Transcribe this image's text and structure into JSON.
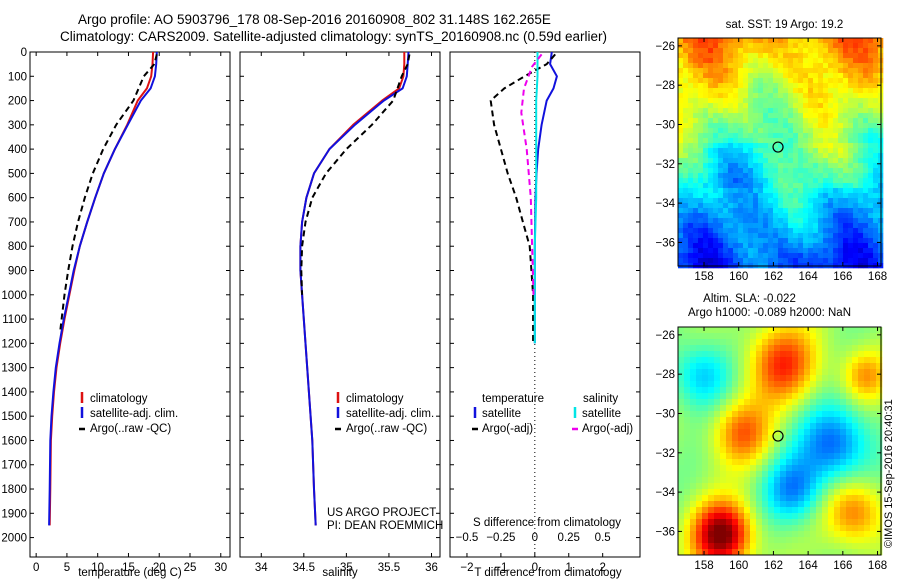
{
  "header": {
    "line1": "Argo profile: AO 5903796_178 08-Sep-2016 20160908_802 31.148S 162.265E",
    "line2": "Climatology: CARS2009. Satellite-adjusted climatology: synTS_20160908.nc (0.59d earlier)"
  },
  "colors": {
    "climatology": "#dd1111",
    "satellite": "#1111dd",
    "argo": "#000000",
    "sal_satellite": "#00e5e5",
    "sal_argo": "#ee00ee"
  },
  "chart_data": [
    {
      "type": "line",
      "name": "temperature-panel",
      "xlabel": "temperature (deg C)",
      "ylabel": "",
      "xlim": [
        -1,
        31.5
      ],
      "ylim": [
        2080,
        0
      ],
      "xticks": [
        0,
        5,
        10,
        15,
        20,
        25,
        30
      ],
      "yticks": [
        0,
        100,
        200,
        300,
        400,
        500,
        600,
        700,
        800,
        900,
        1000,
        1100,
        1200,
        1300,
        1400,
        1500,
        1600,
        1700,
        1800,
        1900,
        2000
      ],
      "legend": [
        "climatology",
        "satellite-adj. clim.",
        "Argo(..raw -QC)"
      ],
      "series": [
        {
          "name": "climatology",
          "style": "solid",
          "color_key": "climatology",
          "x": [
            19.0,
            18.9,
            18.7,
            18.0,
            16.5,
            14.8,
            12.8,
            11.0,
            9.6,
            8.3,
            7.1,
            6.2,
            5.4,
            4.6,
            3.9,
            3.3,
            2.9,
            2.6,
            2.4,
            2.3,
            2.2
          ],
          "y": [
            0,
            50,
            100,
            150,
            200,
            300,
            400,
            500,
            600,
            700,
            800,
            900,
            1000,
            1100,
            1200,
            1300,
            1400,
            1500,
            1600,
            1800,
            1950
          ]
        },
        {
          "name": "satellite-adj. clim.",
          "style": "solid",
          "color_key": "satellite",
          "x": [
            19.6,
            19.5,
            19.3,
            18.6,
            17.0,
            14.9,
            12.8,
            11.0,
            9.6,
            8.3,
            7.1,
            6.1,
            5.3,
            4.5,
            3.8,
            3.2,
            2.8,
            2.5,
            2.3,
            2.2,
            2.1
          ],
          "y": [
            0,
            50,
            100,
            150,
            200,
            300,
            400,
            500,
            600,
            700,
            800,
            900,
            1000,
            1100,
            1200,
            1300,
            1400,
            1500,
            1600,
            1800,
            1950
          ]
        },
        {
          "name": "Argo(..raw -QC)",
          "style": "dashed",
          "color_key": "argo",
          "x": [
            19.6,
            19.2,
            17.5,
            15.8,
            13.0,
            10.9,
            9.2,
            7.9,
            6.8,
            5.9,
            5.2,
            4.6,
            3.9
          ],
          "y": [
            10,
            50,
            100,
            200,
            300,
            400,
            500,
            600,
            700,
            800,
            900,
            1000,
            1150
          ]
        }
      ]
    },
    {
      "type": "line",
      "name": "salinity-panel",
      "xlabel": "salinity",
      "xlim": [
        33.75,
        36.1
      ],
      "ylim": [
        2080,
        0
      ],
      "xticks": [
        34,
        34.5,
        35,
        35.5,
        36
      ],
      "yticks": [
        0,
        100,
        200,
        300,
        400,
        500,
        600,
        700,
        800,
        900,
        1000,
        1100,
        1200,
        1300,
        1400,
        1500,
        1600,
        1700,
        1800,
        1900,
        2000
      ],
      "legend": [
        "climatology",
        "satellite-adj. clim.",
        "Argo(..raw -QC)"
      ],
      "series": [
        {
          "name": "climatology",
          "style": "solid",
          "color_key": "climatology",
          "x": [
            35.68,
            35.68,
            35.67,
            35.62,
            35.42,
            35.08,
            34.8,
            34.62,
            34.53,
            34.48,
            34.46,
            34.46,
            34.48,
            34.5,
            34.52,
            34.54,
            34.56,
            34.58,
            34.6,
            34.62,
            34.64
          ],
          "y": [
            0,
            50,
            100,
            150,
            200,
            300,
            400,
            500,
            600,
            700,
            800,
            900,
            1000,
            1100,
            1200,
            1300,
            1400,
            1500,
            1600,
            1800,
            1950
          ]
        },
        {
          "name": "satellite-adj. clim.",
          "style": "solid",
          "color_key": "satellite",
          "x": [
            35.73,
            35.72,
            35.71,
            35.66,
            35.44,
            35.1,
            34.8,
            34.62,
            34.53,
            34.48,
            34.46,
            34.46,
            34.48,
            34.5,
            34.52,
            34.54,
            34.56,
            34.58,
            34.6,
            34.62,
            34.64
          ],
          "y": [
            0,
            50,
            100,
            150,
            200,
            300,
            400,
            500,
            600,
            700,
            800,
            900,
            1000,
            1100,
            1200,
            1300,
            1400,
            1500,
            1600,
            1800,
            1950
          ]
        },
        {
          "name": "Argo(..raw -QC)",
          "style": "dashed",
          "color_key": "argo",
          "x": [
            35.74,
            35.72,
            35.65,
            35.55,
            35.3,
            35.0,
            34.76,
            34.6,
            34.52,
            34.48,
            34.47,
            34.48
          ],
          "y": [
            10,
            50,
            100,
            200,
            300,
            400,
            500,
            600,
            700,
            800,
            900,
            1000
          ]
        }
      ],
      "annotations": [
        "US ARGO PROJECT",
        "PI: DEAN ROEMMICH"
      ]
    },
    {
      "type": "line",
      "name": "difference-panel",
      "xlabel": "T difference from climatology",
      "xlabel2": "S difference from climatology",
      "xlim": [
        -2.5,
        3.1
      ],
      "ylim": [
        2080,
        0
      ],
      "xticks": [
        -2,
        -1,
        0,
        1,
        2
      ],
      "xticks2": [
        -0.5,
        -0.25,
        0,
        0.25,
        0.5
      ],
      "x2scale": 4,
      "legend_title_left": "temperature",
      "legend_title_right": "salinity",
      "legend_left": [
        "satellite",
        "Argo(-adj)"
      ],
      "legend_right": [
        "satellite",
        "Argo(-adj)"
      ],
      "series": [
        {
          "name": "T satellite",
          "style": "solid",
          "color_key": "satellite",
          "x": [
            0.5,
            0.45,
            0.65,
            0.55,
            0.35,
            0.2,
            0.1,
            0.05,
            0.02,
            0.0,
            0.0,
            0.0,
            0.0
          ],
          "y": [
            0,
            50,
            100,
            150,
            200,
            300,
            400,
            500,
            600,
            800,
            1000,
            1100,
            1200
          ]
        },
        {
          "name": "T Argo(-adj)",
          "style": "dashed",
          "color_key": "argo",
          "x": [
            0.6,
            0.35,
            -0.3,
            -0.9,
            -1.3,
            -1.2,
            -1.0,
            -0.8,
            -0.55,
            -0.35,
            -0.15,
            -0.1,
            -0.05,
            -0.05
          ],
          "y": [
            10,
            50,
            100,
            150,
            200,
            300,
            400,
            500,
            600,
            700,
            800,
            900,
            1000,
            1200
          ]
        },
        {
          "name": "S satellite",
          "style": "solid",
          "color_key": "sal_satellite",
          "x": [
            0.02,
            0.02,
            0.01,
            0.01,
            0.01,
            0.01,
            0.0,
            0.0,
            0.0,
            0.0
          ],
          "y": [
            0,
            100,
            200,
            300,
            400,
            600,
            800,
            1000,
            1100,
            1200
          ]
        },
        {
          "name": "S Argo(-adj)",
          "style": "dashed",
          "color_key": "sal_argo",
          "x": [
            0.05,
            -0.02,
            -0.08,
            -0.1,
            -0.06,
            -0.03,
            -0.02,
            -0.01
          ],
          "y": [
            10,
            60,
            150,
            250,
            400,
            600,
            800,
            1000
          ]
        }
      ]
    },
    {
      "type": "heatmap",
      "name": "sst-map",
      "title": "sat. SST: 19 Argo: 19.2",
      "xlim": [
        156.5,
        168.2
      ],
      "ylim": [
        -37.2,
        -25.6
      ],
      "xticks": [
        158,
        160,
        162,
        164,
        166,
        168
      ],
      "yticks": [
        -26,
        -28,
        -30,
        -32,
        -34,
        -36
      ],
      "marker": {
        "lon": 162.265,
        "lat": -31.148
      }
    },
    {
      "type": "heatmap",
      "name": "sla-map",
      "title": "Altim. SLA: -0.022",
      "subtitle": "Argo h1000: -0.089 h2000: NaN",
      "xlim": [
        156.5,
        168.2
      ],
      "ylim": [
        -37.2,
        -25.6
      ],
      "xticks": [
        158,
        160,
        162,
        164,
        166,
        168
      ],
      "yticks": [
        -26,
        -28,
        -30,
        -32,
        -34,
        -36
      ],
      "marker": {
        "lon": 162.265,
        "lat": -31.148
      },
      "annotation": "©IMOS 15-Sep-2016 20:40:31"
    }
  ]
}
